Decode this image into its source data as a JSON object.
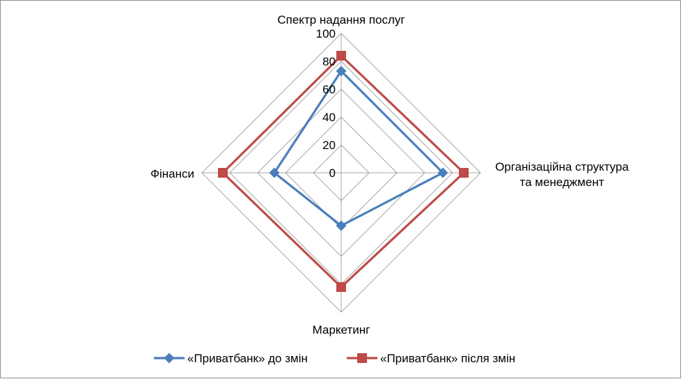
{
  "chart_data": {
    "type": "radar",
    "categories": [
      [
        "Спектр надання послуг"
      ],
      [
        "Організаційна структура",
        "та менеджмент"
      ],
      [
        "Маркетинг"
      ],
      [
        "Фінанси"
      ]
    ],
    "series": [
      {
        "name": "«Приватбанк» до змін",
        "color": "#4a7ebb",
        "marker": "diamond",
        "values": [
          73,
          73,
          38,
          48
        ]
      },
      {
        "name": "«Приватбанк» після змін",
        "color": "#be4b48",
        "marker": "square",
        "values": [
          84,
          88,
          82,
          85
        ]
      }
    ],
    "rlim": [
      0,
      100
    ],
    "ticks": [
      "0",
      "20",
      "40",
      "60",
      "80",
      "100"
    ],
    "tick_values": [
      0,
      20,
      40,
      60,
      80,
      100
    ],
    "grid": true,
    "legend_position": "bottom"
  }
}
